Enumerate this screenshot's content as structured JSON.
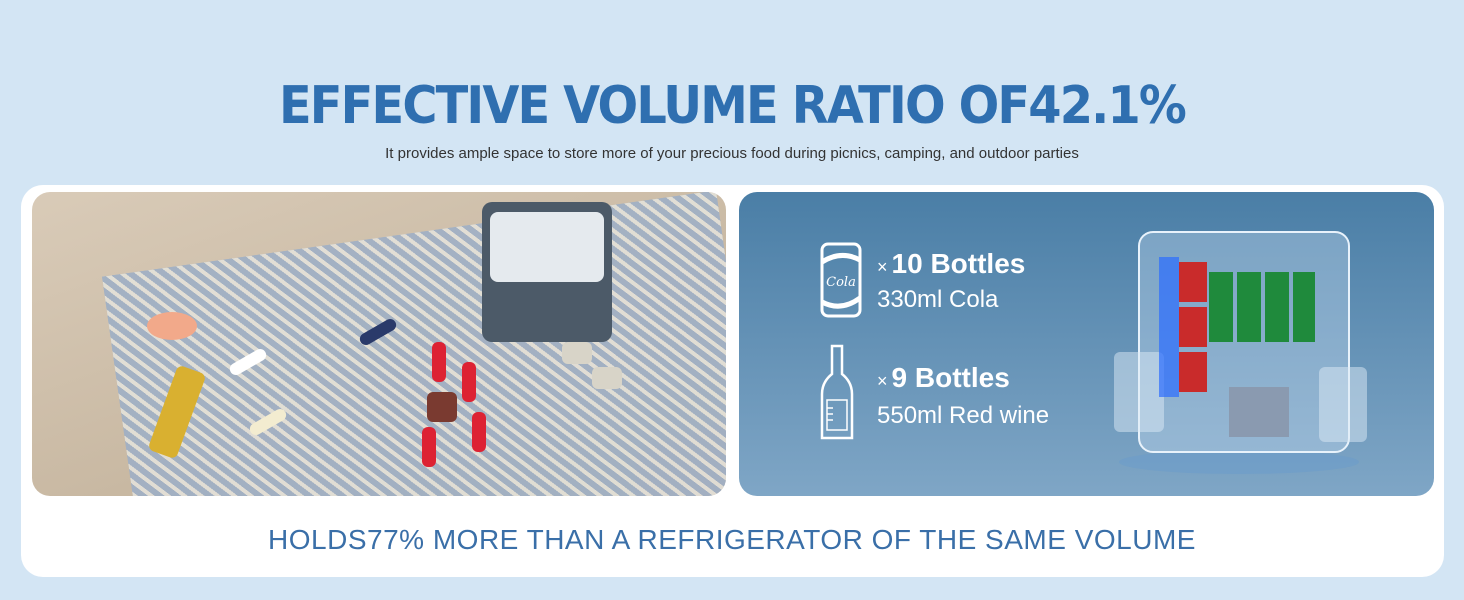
{
  "header": {
    "title": "EFFECTIVE VOLUME RATIO OF42.1%",
    "subtitle": "It provides ample space to store more of your precious food during picnics, camping, and outdoor parties"
  },
  "capacity": [
    {
      "icon": "cola-can-icon",
      "multiplier": "×",
      "count": "10 Bottles",
      "description": "330ml Cola"
    },
    {
      "icon": "wine-bottle-icon",
      "multiplier": "×",
      "count": "9 Bottles",
      "description": "550ml Red wine"
    }
  ],
  "footer": {
    "text": "HOLDS77% MORE THAN A REFRIGERATOR OF THE SAME VOLUME"
  },
  "colors": {
    "background": "#d3e5f4",
    "title": "#2f6fb0",
    "footer": "#3a6fa8",
    "panel": "#4a7ea6"
  }
}
